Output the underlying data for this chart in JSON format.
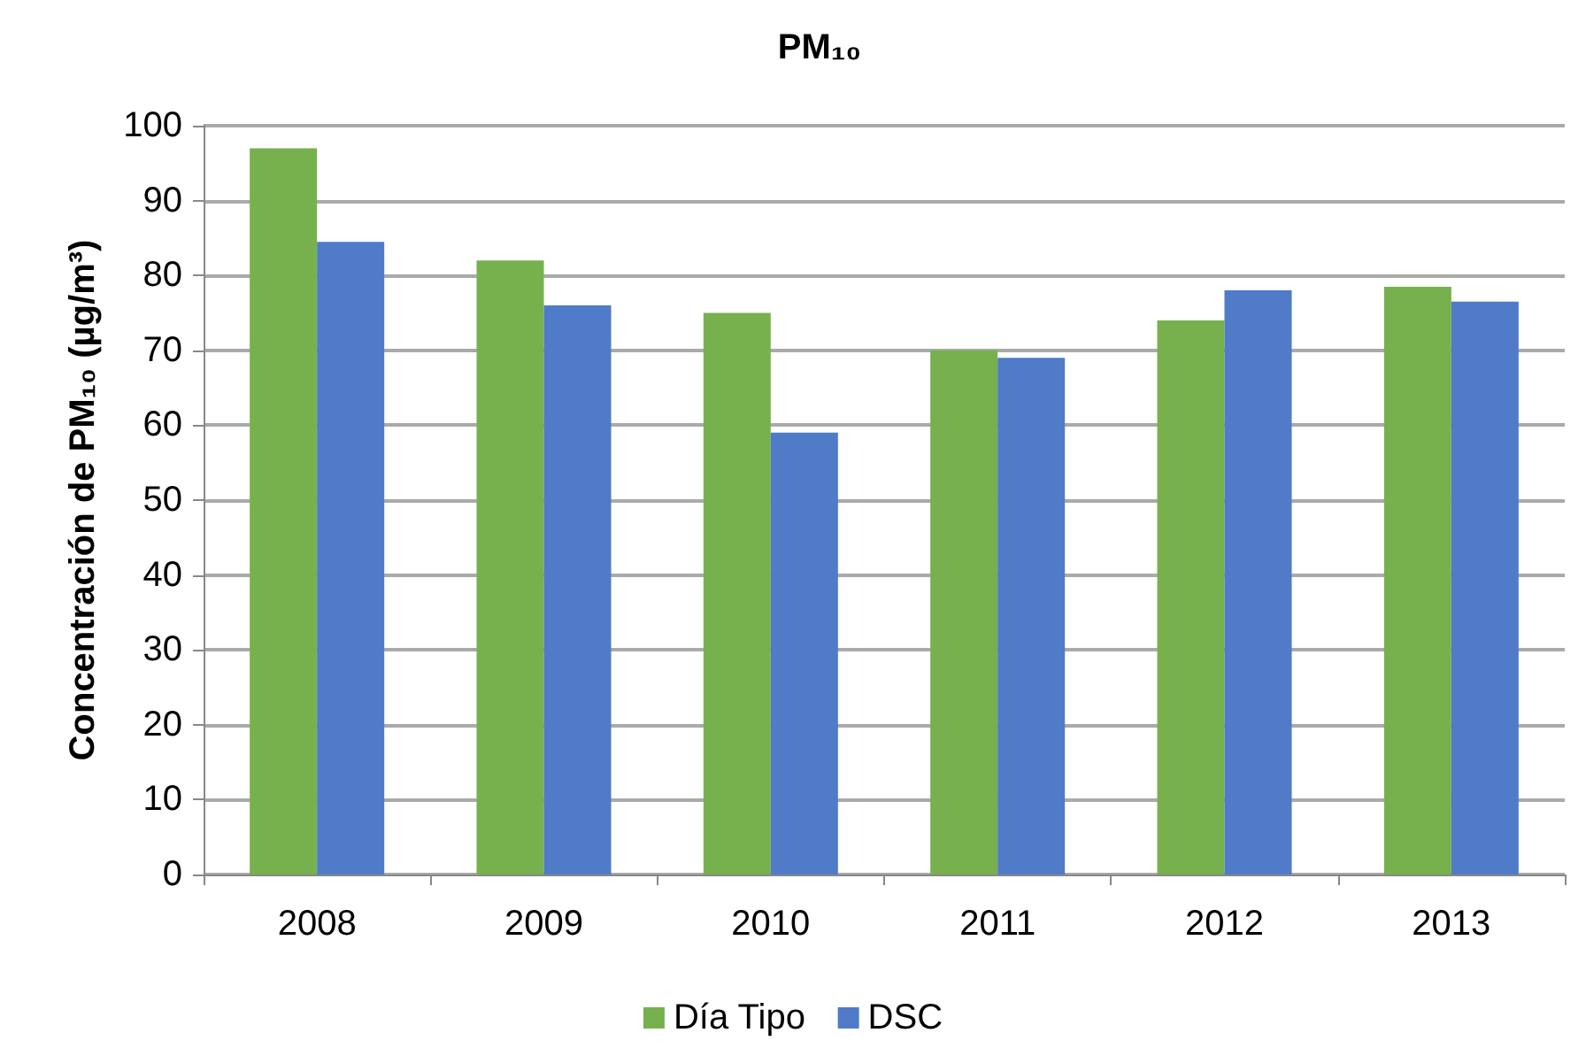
{
  "chart_data": {
    "type": "bar",
    "title": "PM₁₀",
    "ylabel": "Concentración de PM₁₀ (µg/m³)",
    "categories": [
      "2008",
      "2009",
      "2010",
      "2011",
      "2012",
      "2013"
    ],
    "series": [
      {
        "name": "Día Tipo",
        "color": "#77b14e",
        "values": [
          97,
          82,
          75,
          70,
          74,
          78.5
        ]
      },
      {
        "name": "DSC",
        "color": "#4f7bc8",
        "values": [
          84.5,
          76,
          59,
          69,
          78,
          76.5
        ]
      }
    ],
    "ylim": [
      0,
      100
    ],
    "yticks": [
      0,
      10,
      20,
      30,
      40,
      50,
      60,
      70,
      80,
      90,
      100
    ],
    "grid": "y",
    "legend": "bottom"
  }
}
